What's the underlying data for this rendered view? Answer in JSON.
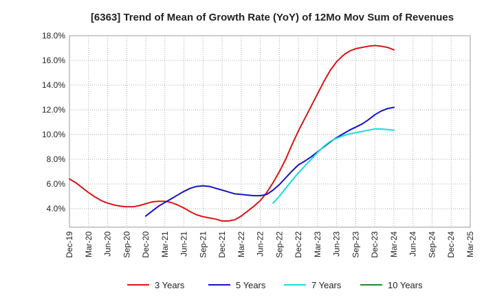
{
  "chart_data": {
    "type": "line",
    "title": "[6363]  Trend of Mean of Growth Rate (YoY) of 12Mo Mov Sum of Revenues",
    "xlabel": "",
    "ylabel": "",
    "ylim": [
      2.5,
      18.0
    ],
    "yticks": [
      4.0,
      6.0,
      8.0,
      10.0,
      12.0,
      14.0,
      16.0,
      18.0
    ],
    "ytick_labels": [
      "4.0%",
      "6.0%",
      "8.0%",
      "10.0%",
      "12.0%",
      "14.0%",
      "16.0%",
      "18.0%"
    ],
    "x_labels": [
      "Dec-19",
      "Mar-20",
      "Jun-20",
      "Sep-20",
      "Dec-20",
      "Mar-21",
      "Jun-21",
      "Sep-21",
      "Dec-21",
      "Mar-22",
      "Jun-22",
      "Sep-22",
      "Dec-22",
      "Mar-23",
      "Jun-23",
      "Sep-23",
      "Dec-23",
      "Mar-24",
      "Jun-24",
      "Sep-24",
      "Dec-24",
      "Mar-25"
    ],
    "grid": true,
    "legend_position": "bottom",
    "series": [
      {
        "name": "3 Years",
        "color": "#dd1111",
        "points": [
          [
            0,
            6.4
          ],
          [
            1,
            6.1
          ],
          [
            2,
            5.7
          ],
          [
            3,
            5.3
          ],
          [
            4,
            4.95
          ],
          [
            5,
            4.65
          ],
          [
            6,
            4.45
          ],
          [
            7,
            4.3
          ],
          [
            8,
            4.2
          ],
          [
            9,
            4.15
          ],
          [
            10,
            4.15
          ],
          [
            11,
            4.25
          ],
          [
            12,
            4.4
          ],
          [
            13,
            4.55
          ],
          [
            14,
            4.6
          ],
          [
            15,
            4.6
          ],
          [
            16,
            4.5
          ],
          [
            17,
            4.3
          ],
          [
            18,
            4.05
          ],
          [
            19,
            3.75
          ],
          [
            20,
            3.5
          ],
          [
            21,
            3.35
          ],
          [
            22,
            3.25
          ],
          [
            23,
            3.15
          ],
          [
            24,
            3.0
          ],
          [
            25,
            3.0
          ],
          [
            26,
            3.1
          ],
          [
            27,
            3.4
          ],
          [
            28,
            3.8
          ],
          [
            29,
            4.2
          ],
          [
            30,
            4.65
          ],
          [
            31,
            5.3
          ],
          [
            32,
            6.1
          ],
          [
            33,
            7.0
          ],
          [
            34,
            8.0
          ],
          [
            35,
            9.2
          ],
          [
            36,
            10.3
          ],
          [
            37,
            11.3
          ],
          [
            38,
            12.3
          ],
          [
            39,
            13.3
          ],
          [
            40,
            14.3
          ],
          [
            41,
            15.2
          ],
          [
            42,
            15.9
          ],
          [
            43,
            16.4
          ],
          [
            44,
            16.75
          ],
          [
            45,
            16.95
          ],
          [
            46,
            17.05
          ],
          [
            47,
            17.15
          ],
          [
            48,
            17.2
          ],
          [
            49,
            17.15
          ],
          [
            50,
            17.05
          ],
          [
            51,
            16.85
          ]
        ]
      },
      {
        "name": "5 Years",
        "color": "#1111cc",
        "points": [
          [
            12,
            3.4
          ],
          [
            13,
            3.8
          ],
          [
            14,
            4.2
          ],
          [
            15,
            4.5
          ],
          [
            16,
            4.8
          ],
          [
            17,
            5.1
          ],
          [
            18,
            5.4
          ],
          [
            19,
            5.65
          ],
          [
            20,
            5.8
          ],
          [
            21,
            5.85
          ],
          [
            22,
            5.8
          ],
          [
            23,
            5.65
          ],
          [
            24,
            5.5
          ],
          [
            25,
            5.35
          ],
          [
            26,
            5.2
          ],
          [
            27,
            5.15
          ],
          [
            28,
            5.1
          ],
          [
            29,
            5.05
          ],
          [
            30,
            5.05
          ],
          [
            31,
            5.15
          ],
          [
            32,
            5.5
          ],
          [
            33,
            5.95
          ],
          [
            34,
            6.5
          ],
          [
            35,
            7.05
          ],
          [
            36,
            7.55
          ],
          [
            37,
            7.85
          ],
          [
            38,
            8.2
          ],
          [
            39,
            8.6
          ],
          [
            40,
            9.0
          ],
          [
            41,
            9.4
          ],
          [
            42,
            9.75
          ],
          [
            43,
            10.05
          ],
          [
            44,
            10.35
          ],
          [
            45,
            10.6
          ],
          [
            46,
            10.85
          ],
          [
            47,
            11.2
          ],
          [
            48,
            11.6
          ],
          [
            49,
            11.9
          ],
          [
            50,
            12.1
          ],
          [
            51,
            12.2
          ]
        ]
      },
      {
        "name": "7 Years",
        "color": "#11dddd",
        "points": [
          [
            32,
            4.45
          ],
          [
            33,
            5.0
          ],
          [
            34,
            5.65
          ],
          [
            35,
            6.3
          ],
          [
            36,
            6.9
          ],
          [
            37,
            7.45
          ],
          [
            38,
            8.0
          ],
          [
            39,
            8.55
          ],
          [
            40,
            9.05
          ],
          [
            41,
            9.45
          ],
          [
            42,
            9.7
          ],
          [
            43,
            9.9
          ],
          [
            44,
            10.05
          ],
          [
            45,
            10.15
          ],
          [
            46,
            10.25
          ],
          [
            47,
            10.35
          ],
          [
            48,
            10.45
          ],
          [
            49,
            10.45
          ],
          [
            50,
            10.4
          ],
          [
            51,
            10.35
          ]
        ]
      },
      {
        "name": "10 Years",
        "color": "#228822",
        "points": []
      }
    ]
  }
}
